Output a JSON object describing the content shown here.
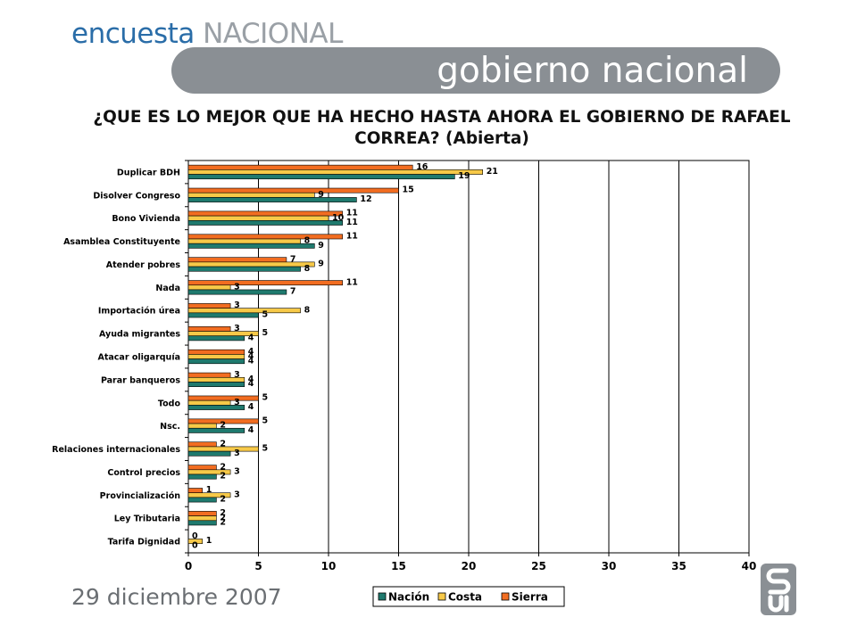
{
  "header": {
    "brand_part1": "encuesta",
    "brand_part2": "NACIONAL",
    "banner_title": "gobierno nacional"
  },
  "question": "¿QUE ES LO MEJOR QUE HA HECHO HASTA AHORA EL GOBIERNO DE RAFAEL CORREA? (Abierta)",
  "footer": {
    "date": "29 diciembre 2007"
  },
  "chart_data": {
    "type": "bar",
    "orientation": "horizontal",
    "title": "",
    "xlabel": "",
    "ylabel": "",
    "xlim": [
      0,
      40
    ],
    "xticks": [
      0,
      5,
      10,
      15,
      20,
      25,
      30,
      35,
      40
    ],
    "grid": true,
    "legend_placement": "bottom",
    "categories": [
      "Duplicar BDH",
      "Disolver Congreso",
      "Bono Vivienda",
      "Asamblea Constituyente",
      "Atender pobres",
      "Nada",
      "Importación úrea",
      "Ayuda migrantes",
      "Atacar oligarquía",
      "Parar banqueros",
      "Todo",
      "Nsc.",
      "Relaciones internacionales",
      "Control precios",
      "Provincialización",
      "Ley Tributaria",
      "Tarifa Dignidad"
    ],
    "series": [
      {
        "name": "Nación",
        "color": "#1f7a6e",
        "values": [
          19,
          12,
          11,
          9,
          8,
          7,
          5,
          4,
          4,
          4,
          4,
          4,
          3,
          2,
          2,
          2,
          0
        ]
      },
      {
        "name": "Costa",
        "color": "#f7c948",
        "values": [
          21,
          9,
          10,
          8,
          9,
          3,
          8,
          5,
          4,
          4,
          3,
          2,
          5,
          3,
          3,
          2,
          1
        ]
      },
      {
        "name": "Sierra",
        "color": "#f26d21",
        "values": [
          16,
          15,
          11,
          11,
          7,
          11,
          3,
          3,
          4,
          3,
          5,
          5,
          2,
          2,
          1,
          2,
          0
        ]
      }
    ]
  }
}
